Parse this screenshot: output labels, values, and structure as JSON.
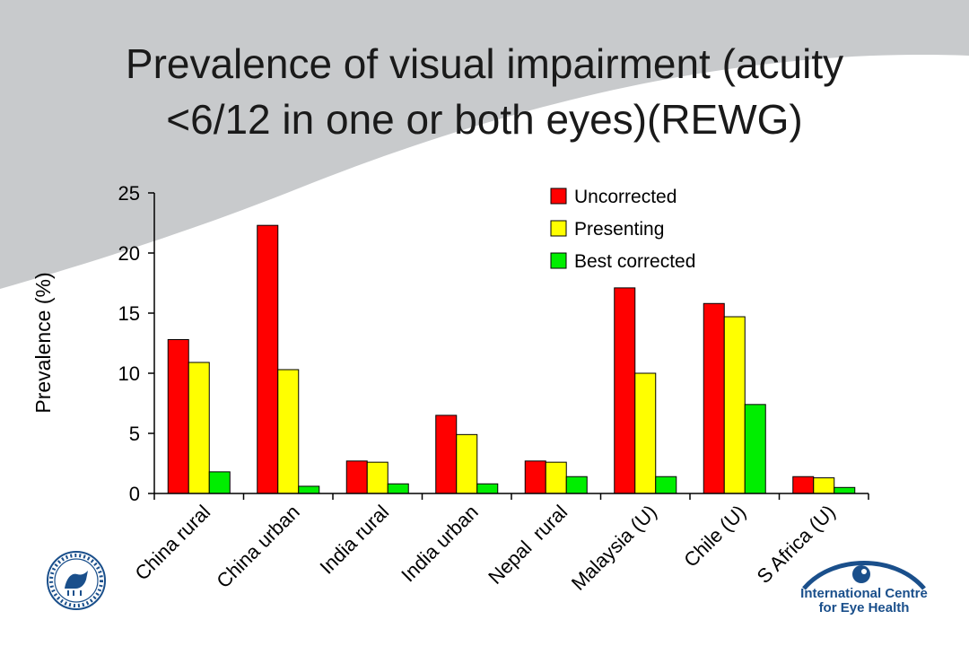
{
  "slide": {
    "title_line1": "Prevalence of visual impairment (acuity",
    "title_line2": "<6/12 in one or both eyes)(REWG)"
  },
  "logos": {
    "left": "lshtm-seal-logo",
    "right": "international-centre-for-eye-health-logo",
    "right_text_line1": "International Centre",
    "right_text_line2": "for Eye Health"
  },
  "colors": {
    "background_swoosh": "#c8cacc",
    "uncorrected": "#ff0000",
    "presenting": "#ffff00",
    "best_corrected": "#00ee00",
    "logo_blue": "#1a4f8b"
  },
  "chart_data": {
    "type": "bar",
    "ylabel": "Prevalence (%)",
    "xlabel": "",
    "ylim": [
      0,
      25
    ],
    "yticks": [
      0,
      5,
      10,
      15,
      20,
      25
    ],
    "grid": false,
    "legend_position": "top-right",
    "categories": [
      "China rural",
      "China urban",
      "India rural",
      "India urban",
      "Nepal  rural",
      "Malaysia (U)",
      "Chile (U)",
      "S Africa (U)"
    ],
    "series": [
      {
        "name": "Uncorrected",
        "color": "#ff0000",
        "values": [
          12.8,
          22.3,
          2.7,
          6.5,
          2.7,
          17.1,
          15.8,
          1.4
        ]
      },
      {
        "name": "Presenting",
        "color": "#ffff00",
        "values": [
          10.9,
          10.3,
          2.6,
          4.9,
          2.6,
          10.0,
          14.7,
          1.3
        ]
      },
      {
        "name": "Best corrected",
        "color": "#00ee00",
        "values": [
          1.8,
          0.6,
          0.8,
          0.8,
          1.4,
          1.4,
          7.4,
          0.5
        ]
      }
    ]
  }
}
